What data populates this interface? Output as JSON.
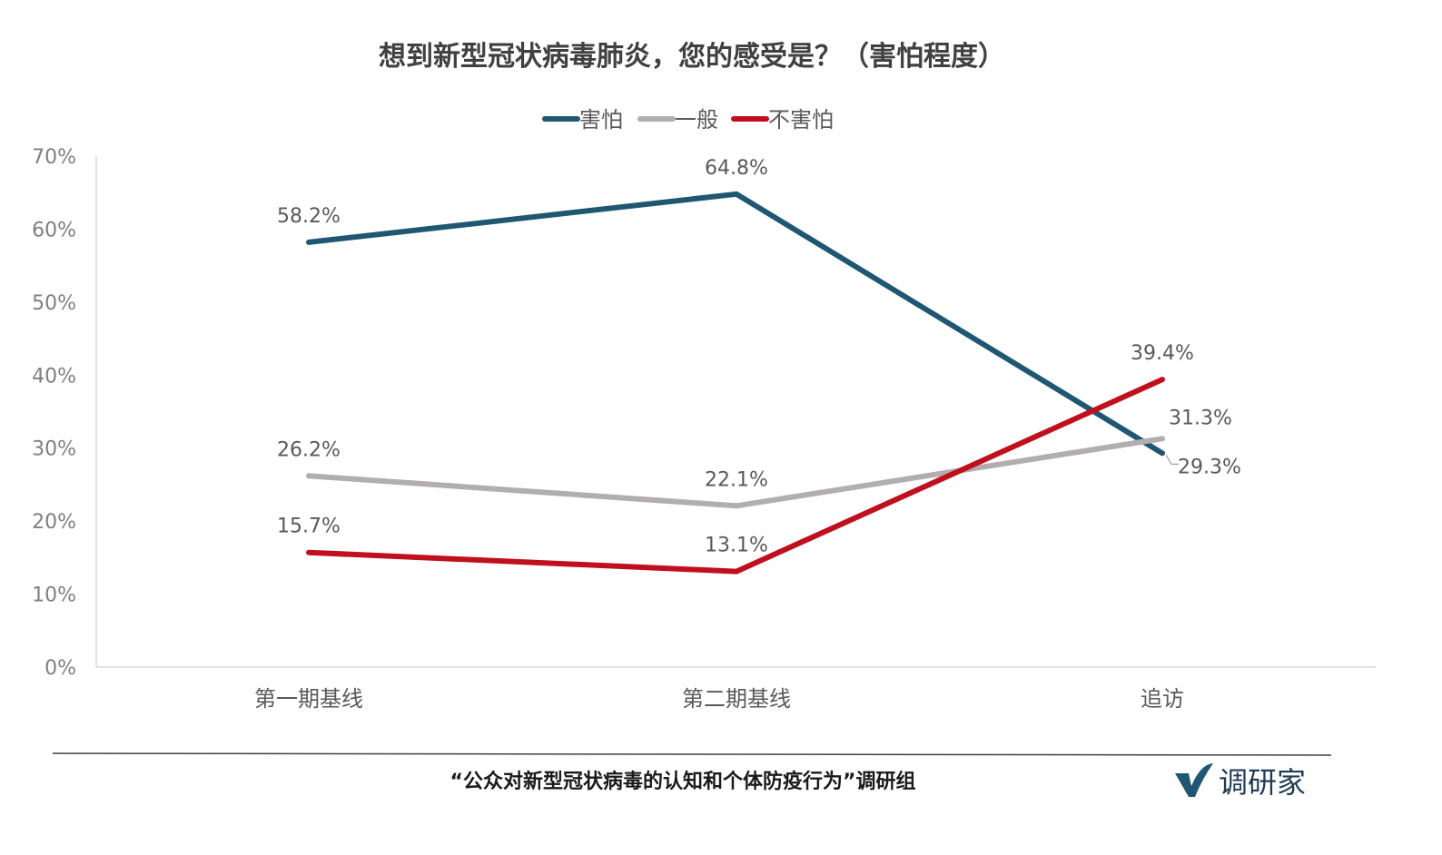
{
  "chart_data": {
    "type": "line",
    "title": "想到新型冠状病毒肺炎，您的感受是？（害怕程度）",
    "categories": [
      "第一期基线",
      "第二期基线",
      "追访"
    ],
    "series": [
      {
        "name": "害怕",
        "color": "#1f5773",
        "values": [
          58.2,
          64.8,
          29.3
        ],
        "labels": [
          "58.2%",
          "64.8%",
          "29.3%"
        ]
      },
      {
        "name": "一般",
        "color": "#b2aeaf",
        "values": [
          26.2,
          22.1,
          31.3
        ],
        "labels": [
          "26.2%",
          "22.1%",
          "31.3%"
        ]
      },
      {
        "name": "不害怕",
        "color": "#c0101e",
        "values": [
          15.7,
          13.1,
          39.4
        ],
        "labels": [
          "15.7%",
          "13.1%",
          "39.4%"
        ]
      }
    ],
    "ylim": [
      0,
      70
    ],
    "yticks": [
      "0%",
      "10%",
      "20%",
      "30%",
      "40%",
      "50%",
      "60%",
      "70%"
    ],
    "legend_position": "top-center",
    "grid": false
  },
  "source": "“公众对新型冠状病毒的认知和个体防疫行为”调研组",
  "brand": {
    "text": "调研家",
    "logo_color": "#1f5773"
  }
}
